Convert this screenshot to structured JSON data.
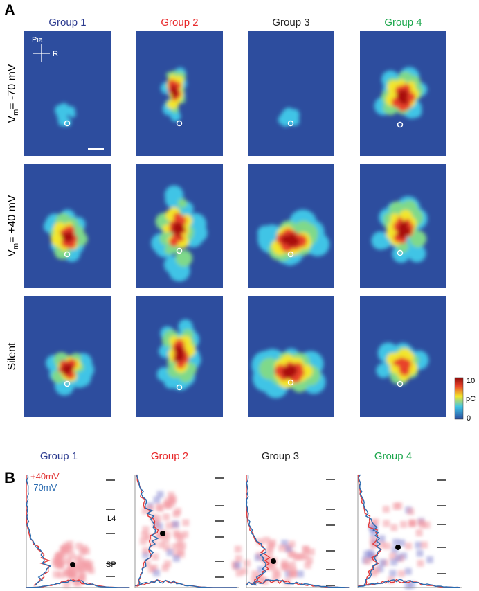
{
  "panel_a": {
    "label": "A",
    "groups": [
      "Group 1",
      "Group 2",
      "Group 3",
      "Group 4"
    ],
    "rows": [
      {
        "prefix": "V",
        "sub": "m",
        "suffix": "= -70 mV"
      },
      {
        "prefix": "V",
        "sub": "m",
        "suffix": "= +40 mV"
      },
      {
        "prefix": "Silent"
      }
    ],
    "orientation": {
      "up": "Pia",
      "right": "R"
    },
    "colorbar": {
      "max": 10,
      "unit": "pC",
      "min": 0
    }
  },
  "panel_b": {
    "label": "B",
    "groups": [
      "Group 1",
      "Group 2",
      "Group 3",
      "Group 4"
    ],
    "legend": [
      "+40mV",
      "-70mV"
    ],
    "layers": [
      "L4",
      "SP"
    ]
  }
}
